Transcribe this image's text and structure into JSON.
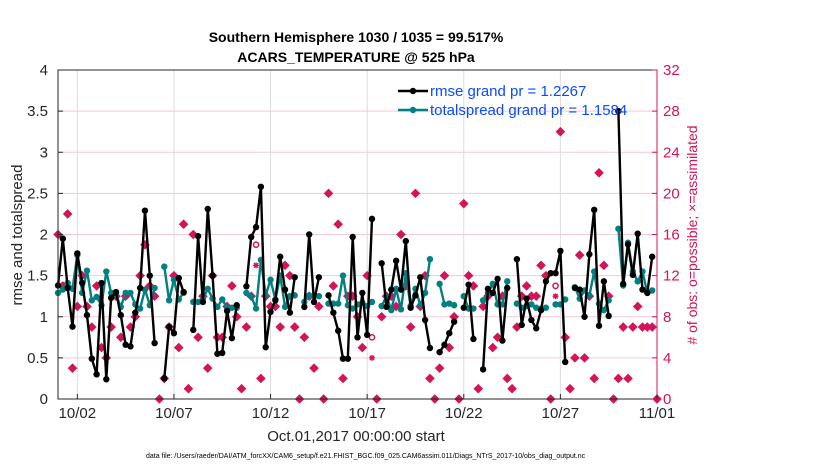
{
  "chart_data": {
    "type": "line",
    "title": [
      "Southern Hemisphere 1030 / 1035 = 99.517%",
      "ACARS_TEMPERATURE @ 525 hPa"
    ],
    "xlabel": "Oct.01,2017 00:00:00 start",
    "ylabel": "rmse and totalspread",
    "ylabel_right": "# of obs: o=possible; ×=assimilated",
    "footnote": "data file: /Users/raeder/DAI/ATM_forcXX/CAM6_setup/f.e21.FHIST_BGC.f09_025.CAM6assim.011/Diags_NTrS_2017-10/obs_diag_output.nc",
    "x_unit": "days since 2017-10-01 00:00",
    "x_step_days": 0.25,
    "xlim": [
      0,
      31
    ],
    "ylim": [
      0,
      4
    ],
    "ylim_right": [
      0,
      32
    ],
    "yticks": [
      "0",
      "0.5",
      "1",
      "1.5",
      "2",
      "2.5",
      "3",
      "3.5",
      "4"
    ],
    "yticks_right": [
      "0",
      "4",
      "8",
      "12",
      "16",
      "20",
      "24",
      "28",
      "32"
    ],
    "xticks": [
      {
        "day": 1,
        "label": "10/02"
      },
      {
        "day": 6,
        "label": "10/07"
      },
      {
        "day": 11,
        "label": "10/12"
      },
      {
        "day": 16,
        "label": "10/17"
      },
      {
        "day": 21,
        "label": "10/22"
      },
      {
        "day": 26,
        "label": "10/27"
      },
      {
        "day": 31,
        "label": "11/01"
      }
    ],
    "grid": true,
    "legend_position": "top-right",
    "colors": {
      "rmse": "#000000",
      "totalspread": "#008080",
      "obs": "#d4145a",
      "legend_text": "#0a4bff"
    },
    "series": [
      {
        "name": "rmse grand pr = 1.2267",
        "key": "rmse",
        "values": [
          1.38,
          1.95,
          1.35,
          0.88,
          1.77,
          1.41,
          1.02,
          0.49,
          0.3,
          1.41,
          0.24,
          1.23,
          1.3,
          1.02,
          0.66,
          0.64,
          1.05,
          1.35,
          2.29,
          1.5,
          0.68,
          null,
          0.25,
          0.88,
          0.8,
          1.47,
          1.3,
          null,
          0.84,
          1.98,
          1.18,
          2.31,
          1.5,
          0.55,
          0.56,
          1.07,
          0.74,
          1.14,
          null,
          1.37,
          1.97,
          2.09,
          2.58,
          0.63,
          1.06,
          1.2,
          1.73,
          1.33,
          1.05,
          1.48,
          null,
          1.12,
          2.0,
          1.18,
          1.48,
          null,
          1.26,
          1.05,
          0.83,
          0.49,
          0.49,
          1.97,
          0.75,
          1.29,
          0.78,
          2.19,
          null,
          1.65,
          1.12,
          1.33,
          1.68,
          1.33,
          1.92,
          1.11,
          1.26,
          1.48,
          0.96,
          0.62,
          null,
          0.57,
          0.66,
          0.8,
          0.94,
          null,
          1.11,
          1.39,
          0.73,
          null,
          0.36,
          1.34,
          1.29,
          1.46,
          0.71,
          1.35,
          null,
          1.7,
          0.9,
          1.22,
          0.96,
          0.86,
          1.08,
          1.43,
          1.53,
          1.53,
          1.8,
          0.45,
          null,
          1.35,
          1.33,
          1.0,
          1.76,
          2.3,
          0.89,
          1.43,
          1.01,
          null,
          3.5,
          1.4,
          1.88,
          1.51,
          2.01,
          1.33,
          1.29,
          1.73
        ]
      },
      {
        "name": "totalspread grand pr = 1.1584",
        "key": "totalspread",
        "values": [
          1.29,
          1.33,
          1.41,
          1.34,
          1.75,
          1.29,
          1.56,
          1.2,
          1.24,
          1.14,
          1.55,
          1.29,
          1.27,
          1.12,
          1.29,
          1.29,
          1.15,
          1.1,
          1.33,
          1.14,
          1.35,
          null,
          1.61,
          1.2,
          1.45,
          1.21,
          1.29,
          null,
          1.18,
          1.18,
          1.22,
          1.34,
          1.22,
          1.12,
          1.21,
          1.11,
          1.11,
          1.11,
          null,
          1.29,
          1.25,
          1.1,
          1.69,
          1.26,
          1.45,
          1.21,
          1.5,
          1.12,
          1.25,
          1.26,
          null,
          1.18,
          1.26,
          1.25,
          1.25,
          null,
          1.16,
          1.16,
          1.16,
          1.5,
          1.14,
          1.1,
          1.15,
          1.17,
          1.13,
          1.18,
          null,
          1.13,
          1.25,
          1.08,
          1.34,
          1.09,
          1.53,
          1.13,
          1.34,
          1.14,
          1.29,
          1.7,
          null,
          1.4,
          1.15,
          1.16,
          1.14,
          null,
          1.25,
          1.1,
          1.1,
          null,
          1.2,
          1.29,
          1.4,
          1.15,
          1.15,
          1.43,
          null,
          1.16,
          1.11,
          1.13,
          1.15,
          1.11,
          1.1,
          1.11,
          null,
          1.15,
          1.15,
          1.21,
          null,
          1.36,
          1.22,
          1.32,
          1.26,
          1.55,
          1.16,
          1.08,
          1.2,
          null,
          2.07,
          1.38,
          1.9,
          1.55,
          1.43,
          1.55,
          1.29,
          1.32
        ]
      },
      {
        "name": "obs possible",
        "key": "nposs",
        "axis": "right",
        "values": [
          16,
          11,
          18,
          3,
          9,
          12,
          9,
          7,
          11,
          5,
          4,
          7,
          10,
          6,
          10,
          7,
          8,
          12,
          15,
          11,
          10,
          0,
          2,
          7,
          12,
          5,
          17,
          1,
          16,
          6,
          10,
          3,
          12,
          6,
          6,
          9,
          11,
          8,
          1,
          7,
          10,
          15,
          2,
          10,
          9,
          9,
          7,
          13,
          12,
          7,
          0,
          6,
          10,
          3,
          9,
          0,
          20,
          11,
          17,
          2,
          10,
          10,
          8,
          5,
          12,
          6,
          0,
          8,
          10,
          10,
          9,
          16,
          11,
          7,
          20,
          9,
          12,
          2,
          0,
          3,
          12,
          5,
          8,
          0,
          19,
          12,
          11,
          1,
          9,
          10,
          5,
          6,
          10,
          2,
          1,
          7,
          10,
          11,
          10,
          10,
          13,
          12,
          0,
          11,
          26,
          6,
          1,
          4,
          14,
          4,
          10,
          2,
          22,
          13,
          10,
          0,
          2,
          7,
          2,
          7,
          9,
          7,
          7,
          7,
          0
        ]
      },
      {
        "name": "obs assimilated",
        "key": "nused",
        "axis": "right",
        "values": [
          16,
          11,
          18,
          3,
          9,
          12,
          9,
          7,
          11,
          5,
          4,
          7,
          10,
          6,
          10,
          7,
          8,
          12,
          15,
          11,
          10,
          0,
          2,
          7,
          12,
          5,
          17,
          1,
          16,
          6,
          10,
          3,
          12,
          6,
          6,
          9,
          11,
          8,
          1,
          7,
          10,
          13,
          2,
          10,
          9,
          9,
          7,
          13,
          12,
          7,
          0,
          6,
          10,
          3,
          9,
          0,
          20,
          11,
          17,
          2,
          10,
          10,
          8,
          5,
          12,
          4,
          0,
          8,
          10,
          10,
          9,
          16,
          11,
          7,
          20,
          9,
          12,
          2,
          0,
          3,
          12,
          5,
          8,
          0,
          19,
          12,
          11,
          1,
          9,
          10,
          5,
          6,
          10,
          2,
          1,
          7,
          10,
          11,
          10,
          10,
          13,
          12,
          0,
          10,
          26,
          6,
          1,
          4,
          14,
          4,
          10,
          2,
          22,
          13,
          10,
          0,
          2,
          7,
          2,
          7,
          9,
          7,
          7,
          7,
          0
        ]
      }
    ]
  }
}
